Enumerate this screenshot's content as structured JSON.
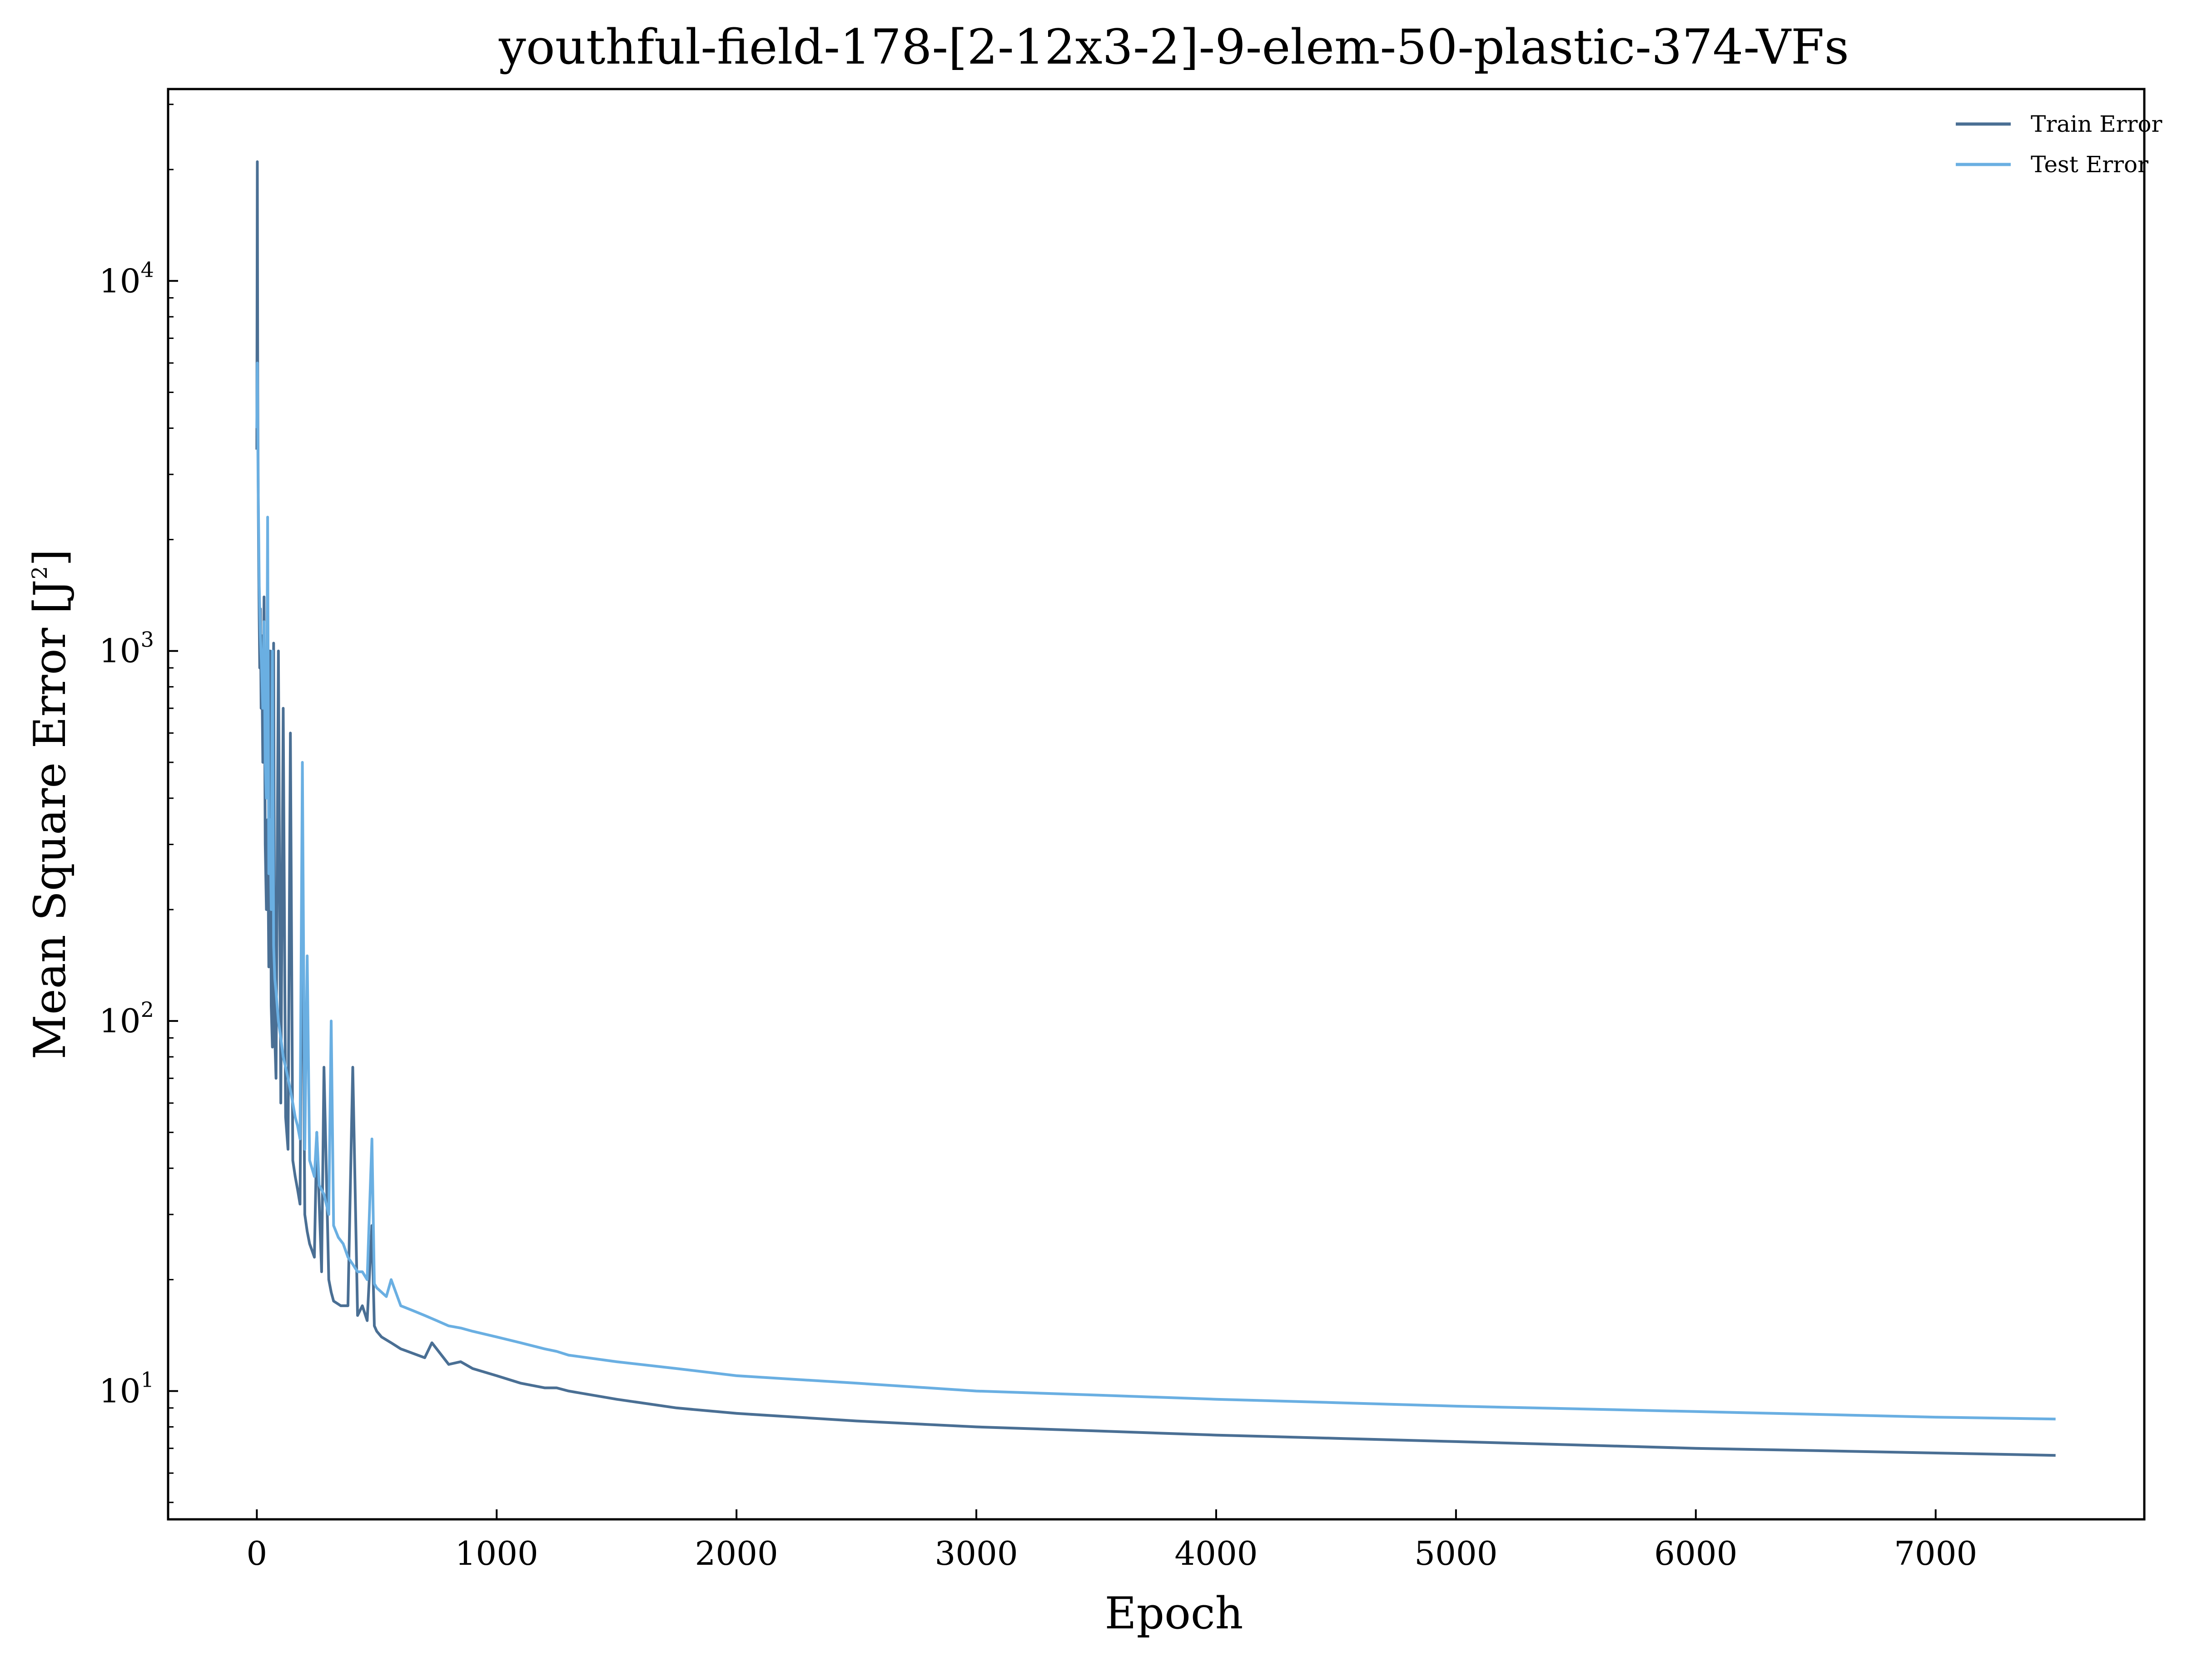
{
  "chart_data": {
    "type": "line",
    "title": "youthful-field-178-[2-12x3-2]-9-elem-50-plastic-374-VFs",
    "xlabel": "Epoch",
    "ylabel": "Mean Square Error [J",
    "ylabel_sup": "2",
    "ylabel_close": "]",
    "y_scale": "log",
    "xlim": [
      -370,
      7870
    ],
    "ylim": [
      4.5,
      33000
    ],
    "x_ticks": [
      0,
      1000,
      2000,
      3000,
      4000,
      5000,
      6000,
      7000
    ],
    "x_tick_labels": [
      "0",
      "1000",
      "2000",
      "3000",
      "4000",
      "5000",
      "6000",
      "7000"
    ],
    "y_ticks": [
      10,
      100,
      1000,
      10000
    ],
    "y_tick_labels": [
      {
        "base": "10",
        "exp": "1"
      },
      {
        "base": "10",
        "exp": "2"
      },
      {
        "base": "10",
        "exp": "3"
      },
      {
        "base": "10",
        "exp": "4"
      }
    ],
    "grid": false,
    "legend": "top-right",
    "series": [
      {
        "name": "Train Error",
        "color": "#4a6f94",
        "x": [
          0,
          2,
          4,
          6,
          8,
          10,
          12,
          15,
          18,
          20,
          25,
          30,
          35,
          40,
          45,
          50,
          55,
          60,
          65,
          70,
          75,
          80,
          90,
          100,
          110,
          120,
          130,
          140,
          150,
          160,
          170,
          180,
          190,
          200,
          210,
          220,
          230,
          240,
          250,
          270,
          280,
          300,
          310,
          320,
          350,
          380,
          400,
          420,
          440,
          460,
          480,
          490,
          500,
          520,
          560,
          600,
          700,
          730,
          800,
          850,
          900,
          1000,
          1100,
          1200,
          1250,
          1300,
          1500,
          1750,
          2000,
          2500,
          3000,
          3500,
          4000,
          4500,
          5000,
          5500,
          6000,
          6500,
          7000,
          7500
        ],
        "y": [
          3500,
          21000,
          5000,
          2500,
          1600,
          1200,
          900,
          1300,
          700,
          1100,
          500,
          1400,
          300,
          200,
          350,
          140,
          1000,
          110,
          85,
          1050,
          90,
          70,
          1000,
          60,
          700,
          55,
          45,
          600,
          42,
          38,
          35,
          32,
          280,
          30,
          27,
          25,
          24,
          23,
          50,
          21,
          75,
          20,
          18.5,
          17.5,
          17,
          17,
          75,
          16,
          17,
          15.5,
          28,
          15,
          14.5,
          14,
          13.5,
          13,
          12.3,
          13.5,
          11.8,
          12,
          11.5,
          11,
          10.5,
          10.2,
          10.2,
          10,
          9.5,
          9,
          8.7,
          8.3,
          8,
          7.8,
          7.6,
          7.45,
          7.3,
          7.15,
          7.0,
          6.9,
          6.8,
          6.7
        ]
      },
      {
        "name": "Test Error",
        "color": "#6aafe2",
        "x": [
          0,
          2,
          5,
          8,
          10,
          15,
          20,
          25,
          30,
          35,
          40,
          45,
          50,
          55,
          60,
          65,
          70,
          75,
          80,
          90,
          100,
          110,
          120,
          130,
          140,
          150,
          160,
          170,
          180,
          190,
          200,
          210,
          220,
          230,
          240,
          250,
          260,
          280,
          300,
          310,
          320,
          340,
          360,
          380,
          400,
          420,
          440,
          460,
          480,
          490,
          500,
          520,
          540,
          560,
          600,
          650,
          700,
          750,
          800,
          850,
          900,
          1000,
          1100,
          1200,
          1250,
          1300,
          1500,
          1750,
          2000,
          2500,
          3000,
          3500,
          4000,
          4500,
          5000,
          5500,
          6000,
          6500,
          7000,
          7500
        ],
        "y": [
          4000,
          6000,
          3000,
          2000,
          1500,
          1100,
          900,
          700,
          1200,
          500,
          400,
          2300,
          250,
          350,
          200,
          1000,
          160,
          130,
          120,
          100,
          90,
          80,
          75,
          70,
          65,
          60,
          55,
          52,
          48,
          500,
          45,
          150,
          42,
          40,
          38,
          50,
          36,
          34,
          30,
          100,
          28,
          26,
          25,
          23,
          22,
          21,
          21,
          20,
          48,
          19.5,
          19,
          18.5,
          18,
          20,
          17,
          16.5,
          16,
          15.5,
          15,
          14.8,
          14.5,
          14,
          13.5,
          13,
          12.8,
          12.5,
          12,
          11.5,
          11,
          10.5,
          10,
          9.75,
          9.5,
          9.3,
          9.1,
          8.95,
          8.8,
          8.65,
          8.5,
          8.4
        ]
      }
    ]
  }
}
